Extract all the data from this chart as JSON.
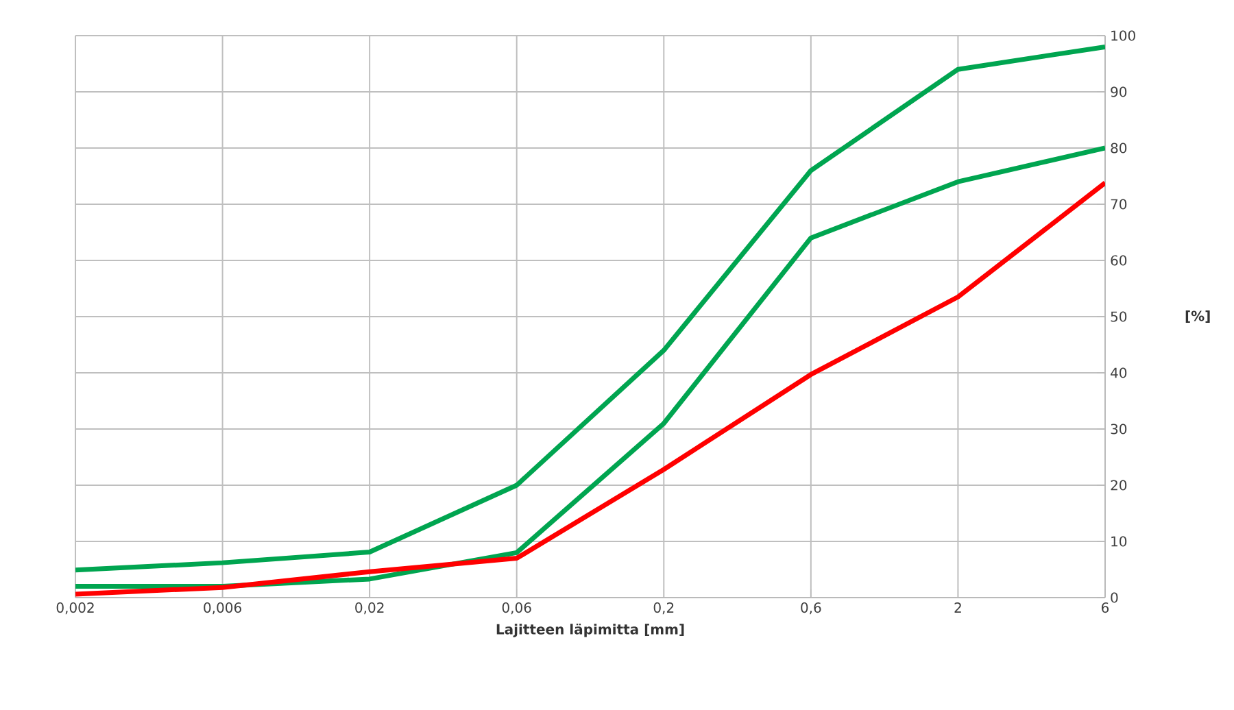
{
  "chart_data": {
    "type": "line",
    "xlabel": "Lajitteen läpimitta [mm]",
    "ylabel": "[%]",
    "categories": [
      "0,002",
      "0,006",
      "0,02",
      "0,06",
      "0,2",
      "0,6",
      "2",
      "6"
    ],
    "series": [
      {
        "color": "#00a550",
        "values": [
          4.9,
          6.2,
          8.1,
          20,
          44,
          76,
          94,
          98
        ]
      },
      {
        "color": "#00a550",
        "values": [
          2,
          2,
          3.3,
          8,
          31,
          64,
          74,
          80
        ]
      },
      {
        "color": "#ff0000",
        "values": [
          0.6,
          1.8,
          4.6,
          7,
          22.8,
          39.7,
          53.5,
          73.8
        ]
      }
    ],
    "ylim": [
      0,
      100
    ],
    "yticks": [
      0,
      10,
      20,
      30,
      40,
      50,
      60,
      70,
      80,
      90,
      100
    ],
    "grid": true,
    "marker": "none",
    "line_style": "solid"
  }
}
